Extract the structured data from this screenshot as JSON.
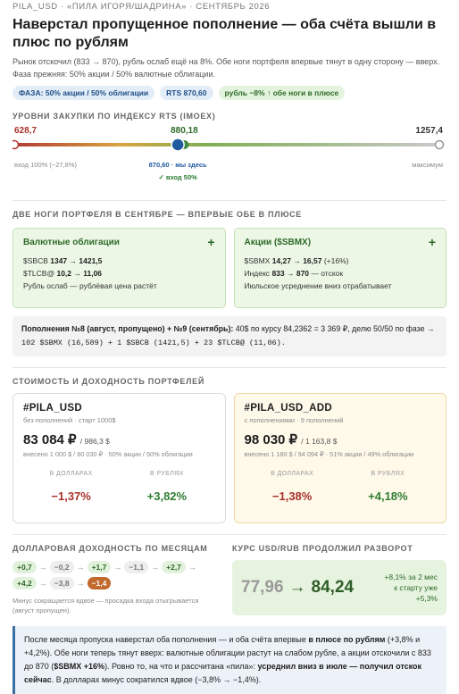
{
  "header": {
    "kicker": "PILA_USD · «ПИЛА ИГОРЯ/ШАДРИНА» · СЕНТЯБРЬ 2026",
    "title": "Наверстал пропущенное пополнение — оба счёта вышли в плюс по рублям",
    "lead": "Рынок отскочил (833 → 870), рубль ослаб ещё на 8%. Обе ноги портфеля впервые тянут в одну сторону — вверх. Фаза прежняя: 50% акции / 50% валютные облигации.",
    "tags": [
      "ФАЗА: 50% акции / 50% облигации",
      "RTS 870,60",
      "рубль −8% ↑ обе ноги в плюсе"
    ]
  },
  "levels": {
    "heading": "УРОВНИ ЗАКУПКИ ПО ИНДЕКСУ RTS (IMOEX)",
    "min": {
      "value": 628.7,
      "label": "628,7"
    },
    "max": {
      "value": 1257.4,
      "label": "1257,4"
    },
    "target": {
      "value": 880.18,
      "label": "880,18"
    },
    "current": {
      "value": 870.6,
      "label": "870,60 · мы здесь"
    },
    "min_caption": "вход 100% (−27,8%)",
    "max_caption": "максимум",
    "current_caption": "✓ вход 50%"
  },
  "legs": {
    "heading": "ДВЕ НОГИ ПОРТФЕЛЯ В СЕНТЯБРЕ — ВПЕРВЫЕ ОБЕ В ПЛЮСЕ",
    "cards": [
      {
        "title": "Валютные облигации",
        "icon": "+",
        "lines": [
          {
            "label": "$SBCB",
            "value": "1347 → 1421,5"
          },
          {
            "label": "$TLCB@",
            "value": "10,2 → 11,06"
          },
          {
            "label": "Рубль ослаб — рублёвая цена растёт"
          }
        ]
      },
      {
        "title": "Акции ($SBMX)",
        "icon": "+",
        "lines": [
          {
            "label": "$SBMX",
            "value": "14,27 → 16,57",
            "note": "(+16%)"
          },
          {
            "label": "Индекс",
            "value": "833 → 870",
            "note": "— отскок"
          },
          {
            "label": "Июльское усреднение вниз отрабатывает"
          }
        ]
      }
    ],
    "note": {
      "bold": "Пополнения №8 (август, пропущено) + №9 (сентябрь):",
      "text": "40$ по курсу 84,2362 = 3 369 ₽, делю 50/50 по фазе →",
      "code": "102 $SBMX (16,589) + 1 $SBCB (1421,5) + 23 $TLCB@ (11,06)."
    }
  },
  "portfolios": {
    "heading": "СТОИМОСТЬ И ДОХОДНОСТЬ ПОРТФЕЛЕЙ",
    "cards": [
      {
        "name": "#PILA_USD",
        "subtitle": "без пополнений · старт 1000$",
        "rub": "83 084 ₽",
        "usd": "/ 986,3 $",
        "deposited": "внесено 1 000 $ / 80 030 ₽ · 50% акции / 50% облигации",
        "metrics": [
          {
            "label": "В ДОЛЛАРАХ",
            "value": "−1,37%",
            "color": "#a8322b"
          },
          {
            "label": "В РУБЛЯХ",
            "value": "+3,82%",
            "color": "#2e7d32"
          }
        ]
      },
      {
        "name": "#PILA_USD_ADD",
        "subtitle": "с пополнениями · 9 пополнений",
        "rub": "98 030 ₽",
        "usd": "/ 1 163,8 $",
        "deposited": "внесено 1 180 $ / 94 094 ₽ · 51% акции / 49% облигации",
        "metrics": [
          {
            "label": "В ДОЛЛАРАХ",
            "value": "−1,38%",
            "color": "#a8322b"
          },
          {
            "label": "В РУБЛЯХ",
            "value": "+4,18%",
            "color": "#2e7d32"
          }
        ]
      }
    ]
  },
  "monthly": {
    "heading": "ДОЛЛАРОВАЯ ДОХОДНОСТЬ ПО МЕСЯЦАМ",
    "separator": "→",
    "chips": [
      {
        "text": "+0,7",
        "color": "#2e6b2a",
        "background": "#e2f1dc"
      },
      {
        "text": "−0,2",
        "color": "#777777",
        "background": "#eeeeee"
      },
      {
        "text": "+1,7",
        "color": "#2e6b2a",
        "background": "#e2f1dc"
      },
      {
        "text": "−1,1",
        "color": "#777777",
        "background": "#eeeeee"
      },
      {
        "text": "+2,7",
        "color": "#2e6b2a",
        "background": "#e2f1dc"
      },
      {
        "text": "+4,2",
        "color": "#2e6b2a",
        "background": "#e2f1dc"
      },
      {
        "text": "−3,8",
        "color": "#777777",
        "background": "#eeeeee"
      },
      {
        "text": "−1,4",
        "color": "#ffffff",
        "background": "#c2692e"
      }
    ],
    "note": "Минус сокращается вдвое — просадка входа отыгрывается (август пропущен)."
  },
  "rate": {
    "heading": "КУРС USD/RUB ПРОДОЛЖИЛ РАЗВОРОТ",
    "from": "77,96",
    "arrow": "→",
    "to": "84,24",
    "change": "+8,1% за 2 мес",
    "since_start": "к старту уже +5,3%"
  },
  "summary": [
    {
      "text": "После месяца пропуска наверстал оба пополнения — и оба счёта впервые "
    },
    {
      "text": "в плюсе по рублям",
      "bold": true
    },
    {
      "text": " (+3,8% и +4,2%). Обе ноги теперь тянут вверх: валютные облигации растут на слабом рубле, а акции отскочили с 833 до 870 ("
    },
    {
      "text": "$SBMX +16%",
      "bold": true
    },
    {
      "text": "). Ровно то, на что и рассчитана «пила»: "
    },
    {
      "text": "усреднил вниз в июле — получил отскок сейчас",
      "bold": true
    },
    {
      "text": ". В долларах минус сократился вдвое (−3,8% → −1,4%)."
    }
  ]
}
